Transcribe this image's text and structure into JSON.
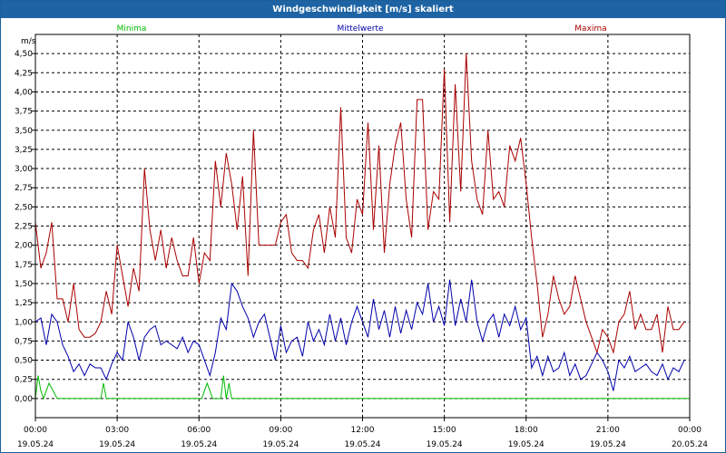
{
  "window": {
    "title": "Windgeschwindigkeit [m/s] skaliert"
  },
  "colors": {
    "title_bar": "#1e64a4",
    "minima": "#00bb00",
    "mittelwerte": "#0000aa",
    "maxima": "#aa0000",
    "grid": "#000000"
  },
  "chart_data": {
    "type": "line",
    "title": "Windgeschwindigkeit [m/s] skaliert",
    "ylabel": "m/s",
    "xlabel": "",
    "ylim": [
      -0.25,
      4.75
    ],
    "xlim": [
      "19.05.24 00:00",
      "20.05.24 00:00"
    ],
    "grid": true,
    "legend_placement": "top",
    "y_ticks": [
      "0,00",
      "0,25",
      "0,50",
      "0,75",
      "1,00",
      "1,25",
      "1,50",
      "1,75",
      "2,00",
      "2,25",
      "2,50",
      "2,75",
      "3,00",
      "3,25",
      "3,50",
      "3,75",
      "4,00",
      "4,25",
      "4,50"
    ],
    "x_ticks": [
      {
        "time": "00:00",
        "date": "19.05.24"
      },
      {
        "time": "03:00",
        "date": "19.05.24"
      },
      {
        "time": "06:00",
        "date": "19.05.24"
      },
      {
        "time": "09:00",
        "date": "19.05.24"
      },
      {
        "time": "12:00",
        "date": "19.05.24"
      },
      {
        "time": "15:00",
        "date": "19.05.24"
      },
      {
        "time": "18:00",
        "date": "19.05.24"
      },
      {
        "time": "21:00",
        "date": "19.05.24"
      },
      {
        "time": "00:00",
        "date": "20.05.24"
      }
    ],
    "series": [
      {
        "name": "Minima",
        "x": [
          0,
          0.1,
          0.2,
          0.3,
          0.5,
          0.8,
          1.2,
          2.4,
          2.5,
          2.6,
          2.8,
          3.0,
          6.1,
          6.3,
          6.5,
          6.8,
          6.9,
          7.0,
          7.1,
          7.2,
          8.0,
          12.0,
          15.0,
          18.0,
          21.0,
          24.0
        ],
        "y": [
          0,
          0.3,
          0.1,
          0,
          0.2,
          0,
          0,
          0,
          0.2,
          0,
          0,
          0,
          0,
          0.2,
          0,
          0,
          0.3,
          0,
          0.2,
          0,
          0,
          0,
          0,
          0,
          0,
          0
        ]
      },
      {
        "name": "Mittelwerte",
        "x": [
          0,
          0.2,
          0.4,
          0.6,
          0.8,
          1.0,
          1.2,
          1.4,
          1.6,
          1.8,
          2.0,
          2.2,
          2.4,
          2.6,
          2.8,
          3.0,
          3.2,
          3.4,
          3.6,
          3.8,
          4.0,
          4.2,
          4.4,
          4.6,
          4.8,
          5.0,
          5.2,
          5.4,
          5.6,
          5.8,
          6.0,
          6.2,
          6.4,
          6.6,
          6.8,
          7.0,
          7.2,
          7.4,
          7.6,
          7.8,
          8.0,
          8.2,
          8.4,
          8.6,
          8.8,
          9.0,
          9.2,
          9.4,
          9.6,
          9.8,
          10.0,
          10.2,
          10.4,
          10.6,
          10.8,
          11.0,
          11.2,
          11.4,
          11.6,
          11.8,
          12.0,
          12.2,
          12.4,
          12.6,
          12.8,
          13.0,
          13.2,
          13.4,
          13.6,
          13.8,
          14.0,
          14.2,
          14.4,
          14.6,
          14.8,
          15.0,
          15.2,
          15.4,
          15.6,
          15.8,
          16.0,
          16.2,
          16.4,
          16.6,
          16.8,
          17.0,
          17.2,
          17.4,
          17.6,
          17.8,
          18.0,
          18.2,
          18.4,
          18.6,
          18.8,
          19.0,
          19.2,
          19.4,
          19.6,
          19.8,
          20.0,
          20.2,
          20.4,
          20.6,
          20.8,
          21.0,
          21.2,
          21.4,
          21.6,
          21.8,
          22.0,
          22.2,
          22.4,
          22.6,
          22.8,
          23.0,
          23.2,
          23.4,
          23.6,
          23.8
        ],
        "y": [
          1.0,
          1.05,
          0.7,
          1.1,
          1.0,
          0.7,
          0.55,
          0.35,
          0.45,
          0.3,
          0.45,
          0.4,
          0.4,
          0.25,
          0.45,
          0.6,
          0.5,
          1.0,
          0.8,
          0.5,
          0.8,
          0.9,
          0.95,
          0.7,
          0.75,
          0.7,
          0.65,
          0.8,
          0.6,
          0.75,
          0.7,
          0.5,
          0.3,
          0.6,
          1.05,
          0.9,
          1.5,
          1.4,
          1.2,
          1.05,
          0.8,
          1.0,
          1.1,
          0.8,
          0.5,
          0.95,
          0.6,
          0.75,
          0.8,
          0.55,
          1.0,
          0.75,
          0.9,
          0.7,
          1.1,
          0.75,
          1.05,
          0.7,
          1.0,
          1.2,
          1.0,
          0.8,
          1.3,
          0.9,
          1.15,
          0.8,
          1.2,
          0.85,
          1.15,
          0.9,
          1.25,
          1.1,
          1.5,
          1.0,
          1.2,
          0.95,
          1.55,
          0.95,
          1.3,
          1.0,
          1.55,
          1.0,
          0.75,
          1.0,
          1.1,
          0.8,
          1.1,
          0.95,
          1.2,
          0.9,
          1.05,
          0.4,
          0.55,
          0.3,
          0.55,
          0.35,
          0.4,
          0.6,
          0.3,
          0.45,
          0.25,
          0.3,
          0.45,
          0.6,
          0.5,
          0.35,
          0.1,
          0.5,
          0.4,
          0.55,
          0.35,
          0.4,
          0.45,
          0.35,
          0.3,
          0.45,
          0.25,
          0.4,
          0.35,
          0.5
        ]
      },
      {
        "name": "Maxima",
        "x": [
          0,
          0.2,
          0.4,
          0.6,
          0.8,
          1.0,
          1.2,
          1.4,
          1.6,
          1.8,
          2.0,
          2.2,
          2.4,
          2.6,
          2.8,
          3.0,
          3.2,
          3.4,
          3.6,
          3.8,
          4.0,
          4.2,
          4.4,
          4.6,
          4.8,
          5.0,
          5.2,
          5.4,
          5.6,
          5.8,
          6.0,
          6.2,
          6.4,
          6.6,
          6.8,
          7.0,
          7.2,
          7.4,
          7.6,
          7.8,
          8.0,
          8.2,
          8.4,
          8.6,
          8.8,
          9.0,
          9.2,
          9.4,
          9.6,
          9.8,
          10.0,
          10.2,
          10.4,
          10.6,
          10.8,
          11.0,
          11.2,
          11.4,
          11.6,
          11.8,
          12.0,
          12.2,
          12.4,
          12.6,
          12.8,
          13.0,
          13.2,
          13.4,
          13.6,
          13.8,
          14.0,
          14.2,
          14.4,
          14.6,
          14.8,
          15.0,
          15.2,
          15.4,
          15.6,
          15.8,
          16.0,
          16.2,
          16.4,
          16.6,
          16.8,
          17.0,
          17.2,
          17.4,
          17.6,
          17.8,
          18.0,
          18.2,
          18.4,
          18.6,
          18.8,
          19.0,
          19.2,
          19.4,
          19.6,
          19.8,
          20.0,
          20.2,
          20.4,
          20.6,
          20.8,
          21.0,
          21.2,
          21.4,
          21.6,
          21.8,
          22.0,
          22.2,
          22.4,
          22.6,
          22.8,
          23.0,
          23.2,
          23.4,
          23.6,
          23.8
        ],
        "y": [
          2.3,
          1.7,
          1.9,
          2.3,
          1.3,
          1.3,
          1.0,
          1.5,
          0.9,
          0.8,
          0.8,
          0.85,
          1.0,
          1.4,
          1.1,
          2.0,
          1.6,
          1.2,
          1.7,
          1.4,
          3.0,
          2.2,
          1.8,
          2.2,
          1.7,
          2.1,
          1.8,
          1.6,
          1.6,
          2.1,
          1.5,
          1.9,
          1.8,
          3.1,
          2.5,
          3.2,
          2.8,
          2.2,
          2.9,
          1.6,
          3.5,
          2.0,
          2.0,
          2.0,
          2.0,
          2.3,
          2.4,
          1.9,
          1.8,
          1.8,
          1.7,
          2.2,
          2.4,
          1.9,
          2.5,
          2.1,
          3.8,
          2.1,
          1.9,
          2.6,
          2.4,
          3.6,
          2.2,
          3.3,
          1.9,
          2.8,
          3.3,
          3.6,
          2.6,
          2.1,
          3.9,
          3.9,
          2.2,
          2.7,
          2.6,
          4.3,
          2.3,
          4.1,
          2.7,
          4.5,
          3.1,
          2.6,
          2.4,
          3.5,
          2.6,
          2.7,
          2.5,
          3.3,
          3.1,
          3.4,
          2.8,
          2.1,
          1.5,
          0.8,
          1.1,
          1.6,
          1.3,
          1.1,
          1.2,
          1.6,
          1.3,
          1.0,
          0.8,
          0.6,
          0.9,
          0.8,
          0.6,
          1.0,
          1.1,
          1.4,
          0.9,
          1.1,
          0.9,
          0.9,
          1.1,
          0.6,
          1.2,
          0.9,
          0.9,
          1.0
        ]
      }
    ]
  }
}
